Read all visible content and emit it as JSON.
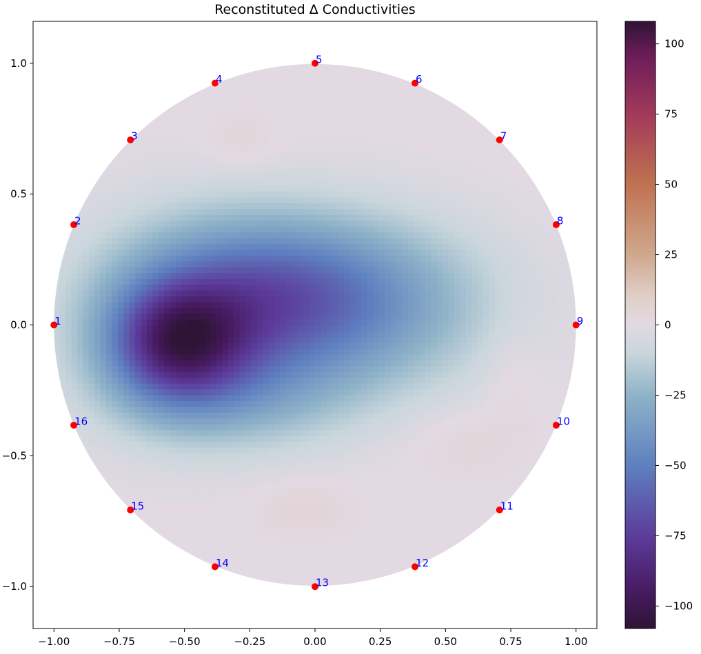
{
  "chart_data": {
    "type": "heatmap",
    "title": "Reconstituted Δ Conductivities",
    "xlabel": "",
    "ylabel": "",
    "xlim": [
      -1.08,
      1.08
    ],
    "ylim": [
      -1.16,
      1.16
    ],
    "xticks": [
      -1.0,
      -0.75,
      -0.5,
      -0.25,
      0.0,
      0.25,
      0.5,
      0.75,
      1.0
    ],
    "xtick_labels": [
      "−1.00",
      "−0.75",
      "−0.50",
      "−0.25",
      "0.00",
      "0.25",
      "0.50",
      "0.75",
      "1.00"
    ],
    "yticks": [
      1.0,
      0.5,
      0.0,
      -0.5,
      -1.0
    ],
    "ytick_labels": [
      "1.0",
      "0.5",
      "0.0",
      "−0.5",
      "−1.0"
    ],
    "grid": false,
    "domain": "unit circle",
    "colormap": "twilight_shifted",
    "colorbar": {
      "vmin": -108,
      "vmax": 108,
      "ticks": [
        100,
        75,
        50,
        25,
        0,
        -25,
        -50,
        -75,
        -100
      ],
      "tick_labels": [
        "100",
        "75",
        "50",
        "25",
        "0",
        "−25",
        "−50",
        "−75",
        "−100"
      ],
      "stops": [
        {
          "value": -108,
          "color": "#2f1436"
        },
        {
          "value": -95,
          "color": "#471a60"
        },
        {
          "value": -75,
          "color": "#5c3c9c"
        },
        {
          "value": -50,
          "color": "#5e80c0"
        },
        {
          "value": -25,
          "color": "#8fb3c8"
        },
        {
          "value": -10,
          "color": "#c9d6dc"
        },
        {
          "value": 0,
          "color": "#e2d9e2"
        },
        {
          "value": 10,
          "color": "#e0cfc8"
        },
        {
          "value": 25,
          "color": "#cfa88e"
        },
        {
          "value": 50,
          "color": "#c07250"
        },
        {
          "value": 75,
          "color": "#a23a5a"
        },
        {
          "value": 95,
          "color": "#6e1d5a"
        },
        {
          "value": 108,
          "color": "#2f1436"
        }
      ]
    },
    "field_features": [
      {
        "x": -0.53,
        "y": -0.07,
        "sx": 0.18,
        "sy": 0.16,
        "value": -62
      },
      {
        "x": -0.38,
        "y": 0.02,
        "sx": 0.34,
        "sy": 0.26,
        "value": -42
      },
      {
        "x": 0.1,
        "y": 0.08,
        "sx": 0.38,
        "sy": 0.22,
        "value": -40
      },
      {
        "x": -0.15,
        "y": 0.2,
        "sx": 0.3,
        "sy": 0.15,
        "value": -10
      },
      {
        "x": -0.3,
        "y": -0.3,
        "sx": 0.3,
        "sy": 0.12,
        "value": -10
      },
      {
        "x": -0.28,
        "y": 0.7,
        "sx": 0.1,
        "sy": 0.08,
        "value": 5
      },
      {
        "x": -0.05,
        "y": -0.7,
        "sx": 0.14,
        "sy": 0.08,
        "value": 5
      },
      {
        "x": 0.55,
        "y": -0.45,
        "sx": 0.14,
        "sy": 0.1,
        "value": 4
      },
      {
        "x": 0.75,
        "y": -0.2,
        "sx": 0.08,
        "sy": 0.18,
        "value": 4
      }
    ],
    "electrodes": {
      "color": "#ff0000",
      "label_color": "#0000ff",
      "points": [
        {
          "label": "1",
          "x": -1.0,
          "y": 0.0
        },
        {
          "label": "2",
          "x": -0.924,
          "y": 0.383
        },
        {
          "label": "3",
          "x": -0.707,
          "y": 0.707
        },
        {
          "label": "4",
          "x": -0.383,
          "y": 0.924
        },
        {
          "label": "5",
          "x": 0.0,
          "y": 1.0
        },
        {
          "label": "6",
          "x": 0.383,
          "y": 0.924
        },
        {
          "label": "7",
          "x": 0.707,
          "y": 0.707
        },
        {
          "label": "8",
          "x": 0.924,
          "y": 0.383
        },
        {
          "label": "9",
          "x": 1.0,
          "y": 0.0
        },
        {
          "label": "10",
          "x": 0.924,
          "y": -0.383
        },
        {
          "label": "11",
          "x": 0.707,
          "y": -0.707
        },
        {
          "label": "12",
          "x": 0.383,
          "y": -0.924
        },
        {
          "label": "13",
          "x": 0.0,
          "y": -1.0
        },
        {
          "label": "14",
          "x": -0.383,
          "y": -0.924
        },
        {
          "label": "15",
          "x": -0.707,
          "y": -0.707
        },
        {
          "label": "16",
          "x": -0.924,
          "y": -0.383
        }
      ]
    }
  }
}
